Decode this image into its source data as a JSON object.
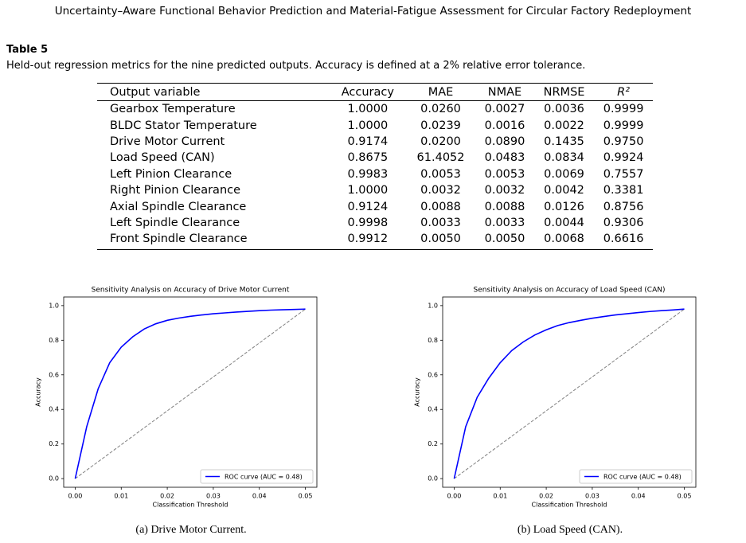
{
  "header": {
    "title": "Uncertainty–Aware Functional Behavior Prediction and Material-Fatigue Assessment for Circular Factory Redeployment"
  },
  "table": {
    "name": "Table 5",
    "caption": "Held-out regression metrics for the nine predicted outputs. Accuracy is defined at a 2% relative error tolerance.",
    "columns": [
      "Output variable",
      "Accuracy",
      "MAE",
      "NMAE",
      "NRMSE",
      "R²"
    ],
    "rows": [
      [
        "Gearbox Temperature",
        "1.0000",
        "0.0260",
        "0.0027",
        "0.0036",
        "0.9999"
      ],
      [
        "BLDC Stator Temperature",
        "1.0000",
        "0.0239",
        "0.0016",
        "0.0022",
        "0.9999"
      ],
      [
        "Drive Motor Current",
        "0.9174",
        "0.0200",
        "0.0890",
        "0.1435",
        "0.9750"
      ],
      [
        "Load Speed (CAN)",
        "0.8675",
        "61.4052",
        "0.0483",
        "0.0834",
        "0.9924"
      ],
      [
        "Left Pinion Clearance",
        "0.9983",
        "0.0053",
        "0.0053",
        "0.0069",
        "0.7557"
      ],
      [
        "Right Pinion Clearance",
        "1.0000",
        "0.0032",
        "0.0032",
        "0.0042",
        "0.3381"
      ],
      [
        "Axial Spindle Clearance",
        "0.9124",
        "0.0088",
        "0.0088",
        "0.0126",
        "0.8756"
      ],
      [
        "Left Spindle Clearance",
        "0.9998",
        "0.0033",
        "0.0033",
        "0.0044",
        "0.9306"
      ],
      [
        "Front Spindle Clearance",
        "0.9912",
        "0.0050",
        "0.0050",
        "0.0068",
        "0.6616"
      ]
    ]
  },
  "chart_data": [
    {
      "type": "line",
      "title": "Sensitivity Analysis on Accuracy of Drive Motor Current",
      "caption": "(a) Drive Motor Current.",
      "x_label": "Classification Threshold",
      "y_label": "Accuracy",
      "x": [
        0,
        0.0025,
        0.005,
        0.0075,
        0.01,
        0.0125,
        0.015,
        0.0175,
        0.02,
        0.0225,
        0.025,
        0.0275,
        0.03,
        0.0325,
        0.035,
        0.0375,
        0.04,
        0.0425,
        0.045,
        0.0475,
        0.05
      ],
      "series": [
        {
          "name": "ROC curve (AUC = 0.48)",
          "color": "#0000ff",
          "values": [
            0,
            0.3,
            0.52,
            0.67,
            0.76,
            0.82,
            0.865,
            0.895,
            0.915,
            0.928,
            0.938,
            0.946,
            0.953,
            0.958,
            0.963,
            0.967,
            0.971,
            0.974,
            0.976,
            0.978,
            0.98
          ]
        }
      ],
      "diagonal": {
        "x": [
          0,
          0.05
        ],
        "values": [
          0,
          0.98
        ],
        "color": "#808080"
      },
      "xlim": [
        -0.0025,
        0.0525
      ],
      "ylim": [
        -0.05,
        1.05
      ],
      "xticks": [
        {
          "value": 0,
          "label": "0.00"
        },
        0.01,
        0.02,
        0.03,
        0.04,
        0.05
      ],
      "yticks": [
        {
          "value": 0,
          "label": "0.0"
        },
        0.2,
        0.4,
        0.6,
        0.8,
        {
          "value": 1,
          "label": "1.0"
        }
      ],
      "legend": "lower right"
    },
    {
      "type": "line",
      "title": "Sensitivity Analysis on Accuracy of Load Speed (CAN)",
      "caption": "(b) Load Speed (CAN).",
      "x_label": "Classification Threshold",
      "y_label": "Accuracy",
      "x": [
        0,
        0.0025,
        0.005,
        0.0075,
        0.01,
        0.0125,
        0.015,
        0.0175,
        0.02,
        0.0225,
        0.025,
        0.0275,
        0.03,
        0.0325,
        0.035,
        0.0375,
        0.04,
        0.0425,
        0.045,
        0.0475,
        0.05
      ],
      "series": [
        {
          "name": "ROC curve (AUC = 0.48)",
          "color": "#0000ff",
          "values": [
            0,
            0.3,
            0.47,
            0.58,
            0.67,
            0.74,
            0.79,
            0.83,
            0.86,
            0.885,
            0.902,
            0.915,
            0.927,
            0.937,
            0.946,
            0.953,
            0.96,
            0.966,
            0.971,
            0.975,
            0.98
          ]
        }
      ],
      "diagonal": {
        "x": [
          0,
          0.05
        ],
        "values": [
          0,
          0.98
        ],
        "color": "#808080"
      },
      "xlim": [
        -0.0025,
        0.0525
      ],
      "ylim": [
        -0.05,
        1.05
      ],
      "xticks": [
        {
          "value": 0,
          "label": "0.00"
        },
        0.01,
        0.02,
        0.03,
        0.04,
        0.05
      ],
      "yticks": [
        {
          "value": 0,
          "label": "0.0"
        },
        0.2,
        0.4,
        0.6,
        0.8,
        {
          "value": 1,
          "label": "1.0"
        }
      ],
      "legend": "lower right"
    }
  ]
}
